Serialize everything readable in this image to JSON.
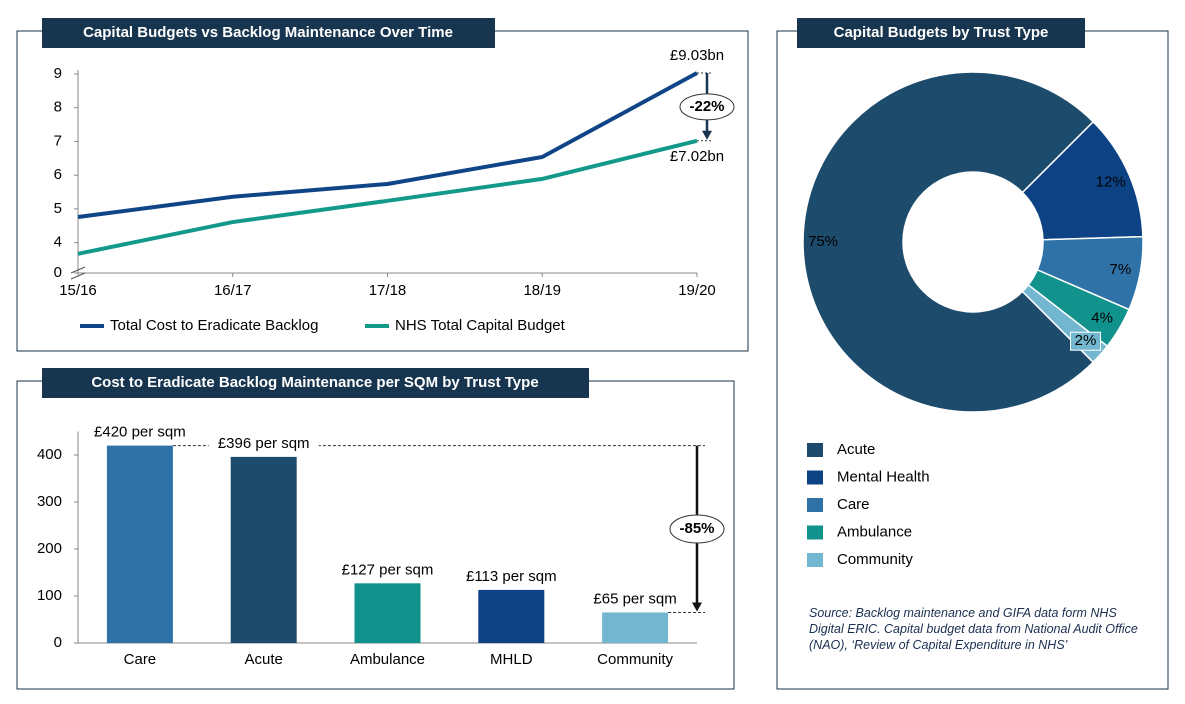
{
  "chart_data": [
    {
      "type": "line",
      "title": "Capital Budgets vs Backlog Maintenance Over Time",
      "categories": [
        "15/16",
        "16/17",
        "17/18",
        "18/19",
        "19/20"
      ],
      "series": [
        {
          "name": "Total Cost to Eradicate Backlog",
          "color": "#0f4586",
          "values": [
            4.76,
            5.36,
            5.74,
            6.54,
            9.03
          ],
          "end_label": "£9.03bn"
        },
        {
          "name": "NHS Total Capital Budget",
          "color": "#12998a",
          "values": [
            3.67,
            4.61,
            5.24,
            5.89,
            7.02
          ],
          "end_label": "£7.02bn"
        }
      ],
      "change_label": "-22%",
      "ylim": [
        0,
        9
      ],
      "axis_break": [
        0,
        3.1
      ],
      "yticks": [
        0,
        4,
        5,
        6,
        7,
        8,
        9
      ],
      "legend": "bottom"
    },
    {
      "type": "bar",
      "title": "Cost to Eradicate Backlog Maintenance per SQM by Trust Type",
      "categories": [
        "Care",
        "Acute",
        "Ambulance",
        "MHLD",
        "Community"
      ],
      "values": [
        420,
        396,
        127,
        113,
        65
      ],
      "value_labels": [
        "£420 per sqm",
        "£396 per sqm",
        "£127 per sqm",
        "£113 per sqm",
        "£65 per sqm"
      ],
      "colors": [
        "#2e72a8",
        "#1c4b6c",
        "#12928d",
        "#0d4385",
        "#72b7cf"
      ],
      "change_label": "-85%",
      "ylim": [
        0,
        450
      ],
      "yticks": [
        0,
        100,
        200,
        300,
        400
      ]
    },
    {
      "type": "pie",
      "title": "Capital Budgets by Trust Type",
      "categories": [
        "Acute",
        "Mental Health",
        "Care",
        "Ambulance",
        "Community"
      ],
      "values": [
        75,
        12,
        7,
        4,
        2
      ],
      "value_labels": [
        "75%",
        "12%",
        "7%",
        "4%",
        "2%"
      ],
      "colors": [
        "#1c4b6c",
        "#0d4385",
        "#2e72a8",
        "#12928d",
        "#72b7cf"
      ],
      "donut": true,
      "legend": "bottom"
    }
  ],
  "source": "Source: Backlog maintenance and GIFA data form NHS Digital ERIC. Capital budget data from National Audit Office (NAO), ‘Review of Capital Expenditure in NHS’"
}
